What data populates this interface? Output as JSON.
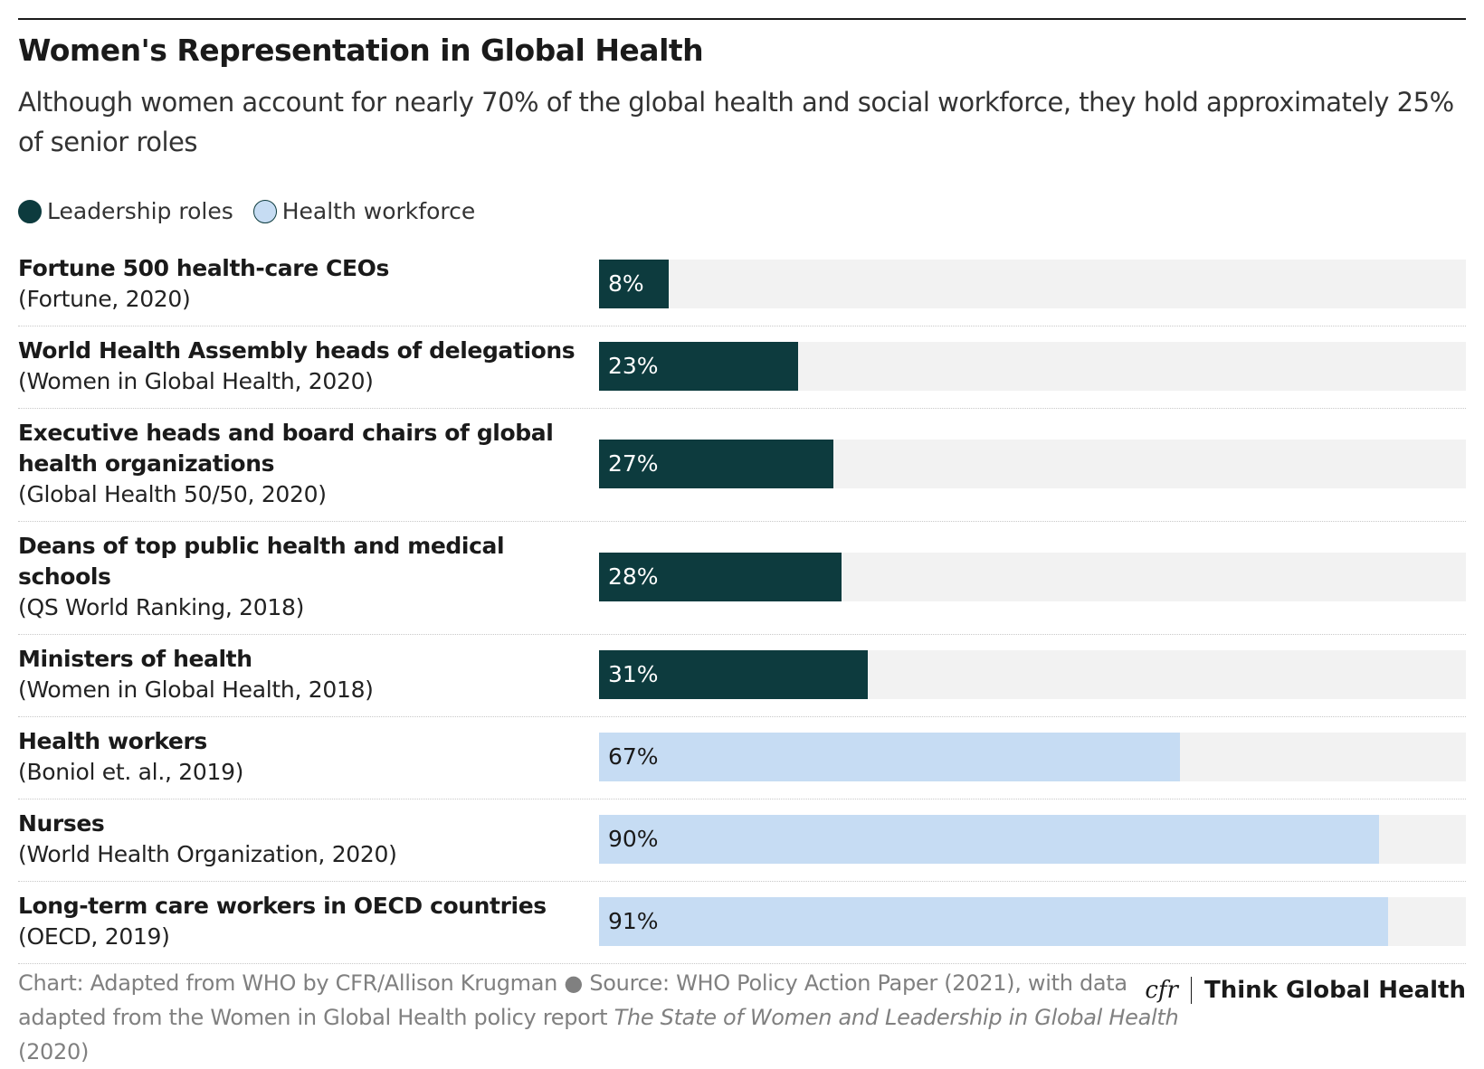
{
  "chart_data": {
    "type": "bar",
    "orientation": "horizontal",
    "title": "Women's Representation in Global Health",
    "subtitle": "Although women account for nearly 70% of the global health and social workforce, they hold approximately 25% of senior roles",
    "categories": [
      "Fortune 500 health-care CEOs",
      "World Health Assembly heads of delegations",
      "Executive heads and board chairs of global health organizations",
      "Deans of top public health and medical schools",
      "Ministers of health",
      "Health workers",
      "Nurses",
      "Long-term care workers in OECD countries"
    ],
    "category_sources": [
      "(Fortune, 2020)",
      "(Women in Global Health, 2020)",
      "(Global Health 50/50, 2020)",
      "(QS World Ranking, 2018)",
      "(Women in Global Health, 2018)",
      "(Boniol et. al., 2019)",
      "(World Health Organization, 2020)",
      "(OECD, 2019)"
    ],
    "series": [
      {
        "name": "Leadership roles",
        "color": "#0d3b3e",
        "values": [
          8,
          23,
          27,
          28,
          31,
          null,
          null,
          null
        ],
        "value_labels": [
          "8%",
          "23%",
          "27%",
          "28%",
          "31%",
          null,
          null,
          null
        ]
      },
      {
        "name": "Health workforce",
        "color": "#c6dcf3",
        "values": [
          null,
          null,
          null,
          null,
          null,
          67,
          90,
          91
        ],
        "value_labels": [
          null,
          null,
          null,
          null,
          null,
          "67%",
          "90%",
          "91%"
        ]
      }
    ],
    "xlim": [
      0,
      100
    ],
    "track_color": "#f2f2f2",
    "source_parts": [
      "Chart: Adapted from WHO by CFR/Allison Krugman ● Source: WHO Policy Action Paper (2021), with data adapted from the Women in Global Health policy report ",
      "The State of Women and Leadership in Global Health",
      " (2020)"
    ],
    "logo": "cfr",
    "brand": "Think Global Health"
  }
}
